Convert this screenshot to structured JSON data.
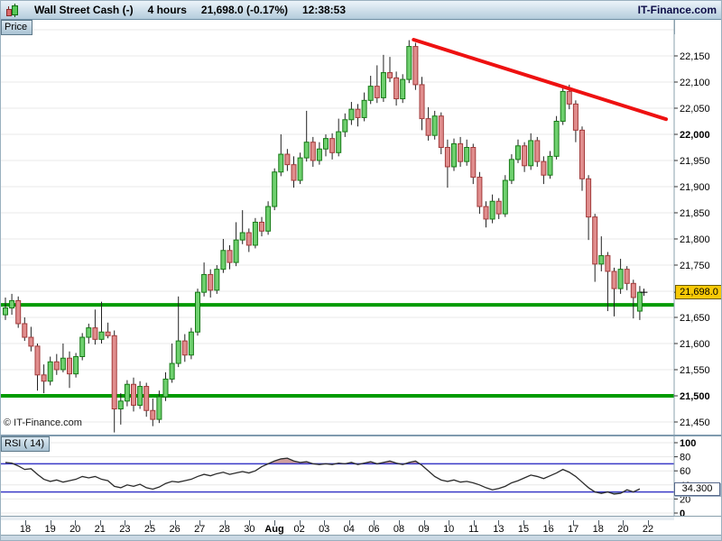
{
  "title_bar": {
    "instrument": "Wall Street Cash (-)",
    "timeframe": "4 hours",
    "quote": "21,698.0 (-0.17%)",
    "time": "12:38:53",
    "brand": "IT-Finance.com"
  },
  "price_panel": {
    "tab_label": "Price",
    "watermark": "© IT-Finance.com",
    "price_badge": "21,698.0"
  },
  "rsi_panel": {
    "tab_label": "RSI ( 14)",
    "value_badge": "34.300"
  },
  "chart_data": [
    {
      "type": "candlestick",
      "title": "Wall Street Cash (-)",
      "timeframe": "4 hours",
      "last_price": 21698.0,
      "change_pct": -0.17,
      "ylim": [
        21430,
        22210
      ],
      "price_axis": {
        "ticks": [
          22150,
          22100,
          22050,
          22000,
          21950,
          21900,
          21850,
          21800,
          21750,
          21650,
          21600,
          21550,
          21500,
          21450
        ],
        "bold": [
          22000,
          21500
        ],
        "grid_step": 50,
        "grid_min": 21450,
        "grid_max": 22200
      },
      "x_labels": [
        "18",
        "19",
        "20",
        "21",
        "23",
        "25",
        "26",
        "27",
        "28",
        "30",
        "Aug",
        "02",
        "03",
        "04",
        "06",
        "08",
        "09",
        "10",
        "11",
        "13",
        "15",
        "16",
        "17",
        "18",
        "20",
        "22"
      ],
      "bold_x_label": "Aug",
      "overlays": {
        "horizontal_lines": [
          {
            "price": 21674,
            "color": "#009b00",
            "width": 4
          },
          {
            "price": 21500,
            "color": "#009b00",
            "width": 4
          }
        ],
        "trendline": {
          "x1_frac": 0.613,
          "price1": 22181,
          "x2_frac": 0.988,
          "price2": 22029,
          "color": "#ee1111",
          "width": 4
        },
        "last_marker": {
          "x_frac": 0.955,
          "price": 21698
        }
      },
      "colors": {
        "up_fill": "#6ed06e",
        "up_stroke": "#167a16",
        "down_fill": "#e08d8d",
        "down_stroke": "#a23a3a",
        "wick": "#222222",
        "grid": "#e8e8e8",
        "axis": "#8aa0ad"
      },
      "candles": [
        [
          21655,
          21688,
          21645,
          21668
        ],
        [
          21668,
          21695,
          21655,
          21682
        ],
        [
          21682,
          21690,
          21630,
          21638
        ],
        [
          21638,
          21650,
          21605,
          21612
        ],
        [
          21612,
          21632,
          21585,
          21595
        ],
        [
          21595,
          21600,
          21510,
          21540
        ],
        [
          21540,
          21560,
          21505,
          21528
        ],
        [
          21528,
          21575,
          21520,
          21565
        ],
        [
          21565,
          21580,
          21540,
          21550
        ],
        [
          21550,
          21600,
          21545,
          21572
        ],
        [
          21572,
          21585,
          21515,
          21542
        ],
        [
          21542,
          21582,
          21535,
          21575
        ],
        [
          21575,
          21620,
          21568,
          21612
        ],
        [
          21612,
          21638,
          21600,
          21630
        ],
        [
          21630,
          21665,
          21598,
          21608
        ],
        [
          21608,
          21680,
          21600,
          21622
        ],
        [
          21622,
          21640,
          21610,
          21615
        ],
        [
          21615,
          21625,
          21430,
          21475
        ],
        [
          21475,
          21505,
          21445,
          21490
        ],
        [
          21490,
          21530,
          21480,
          21522
        ],
        [
          21522,
          21535,
          21470,
          21482
        ],
        [
          21482,
          21528,
          21475,
          21518
        ],
        [
          21518,
          21525,
          21460,
          21472
        ],
        [
          21472,
          21495,
          21442,
          21455
        ],
        [
          21455,
          21510,
          21448,
          21498
        ],
        [
          21498,
          21545,
          21490,
          21532
        ],
        [
          21532,
          21600,
          21525,
          21562
        ],
        [
          21562,
          21690,
          21555,
          21605
        ],
        [
          21605,
          21618,
          21565,
          21578
        ],
        [
          21578,
          21630,
          21570,
          21622
        ],
        [
          21622,
          21705,
          21615,
          21698
        ],
        [
          21698,
          21755,
          21690,
          21732
        ],
        [
          21732,
          21742,
          21688,
          21702
        ],
        [
          21702,
          21750,
          21695,
          21742
        ],
        [
          21742,
          21800,
          21735,
          21778
        ],
        [
          21778,
          21788,
          21742,
          21755
        ],
        [
          21755,
          21832,
          21748,
          21798
        ],
        [
          21798,
          21855,
          21790,
          21812
        ],
        [
          21812,
          21820,
          21775,
          21788
        ],
        [
          21788,
          21840,
          21782,
          21832
        ],
        [
          21832,
          21842,
          21805,
          21815
        ],
        [
          21815,
          21872,
          21808,
          21862
        ],
        [
          21862,
          21935,
          21855,
          21928
        ],
        [
          21928,
          22000,
          21920,
          21962
        ],
        [
          21962,
          21972,
          21930,
          21942
        ],
        [
          21942,
          21958,
          21898,
          21912
        ],
        [
          21912,
          21965,
          21905,
          21955
        ],
        [
          21955,
          22045,
          21948,
          21985
        ],
        [
          21985,
          21995,
          21938,
          21950
        ],
        [
          21950,
          21985,
          21942,
          21972
        ],
        [
          21972,
          22000,
          21958,
          21992
        ],
        [
          21992,
          22002,
          21952,
          21965
        ],
        [
          21965,
          22030,
          21958,
          22005
        ],
        [
          22005,
          22040,
          21995,
          22028
        ],
        [
          22028,
          22062,
          22018,
          22048
        ],
        [
          22048,
          22058,
          22015,
          22032
        ],
        [
          22032,
          22080,
          22025,
          22065
        ],
        [
          22065,
          22112,
          22058,
          22092
        ],
        [
          22092,
          22132,
          22060,
          22070
        ],
        [
          22070,
          22152,
          22062,
          22118
        ],
        [
          22118,
          22148,
          22100,
          22108
        ],
        [
          22108,
          22120,
          22055,
          22068
        ],
        [
          22068,
          22115,
          22060,
          22105
        ],
        [
          22105,
          22180,
          22098,
          22168
        ],
        [
          22168,
          22175,
          22085,
          22095
        ],
        [
          22095,
          22110,
          22008,
          22030
        ],
        [
          22030,
          22052,
          21988,
          21998
        ],
        [
          21998,
          22045,
          21990,
          22035
        ],
        [
          22035,
          22042,
          21962,
          21975
        ],
        [
          21975,
          21990,
          21898,
          21938
        ],
        [
          21938,
          21992,
          21930,
          21982
        ],
        [
          21982,
          21995,
          21938,
          21948
        ],
        [
          21948,
          21990,
          21940,
          21975
        ],
        [
          21975,
          21982,
          21905,
          21918
        ],
        [
          21918,
          21928,
          21848,
          21862
        ],
        [
          21862,
          21872,
          21822,
          21838
        ],
        [
          21838,
          21885,
          21830,
          21872
        ],
        [
          21872,
          21878,
          21838,
          21848
        ],
        [
          21848,
          21922,
          21842,
          21912
        ],
        [
          21912,
          21962,
          21905,
          21952
        ],
        [
          21952,
          21990,
          21945,
          21978
        ],
        [
          21978,
          21985,
          21928,
          21940
        ],
        [
          21940,
          22002,
          21932,
          21988
        ],
        [
          21988,
          21995,
          21938,
          21948
        ],
        [
          21948,
          21958,
          21905,
          21922
        ],
        [
          21922,
          21968,
          21915,
          21958
        ],
        [
          21958,
          22035,
          21952,
          22025
        ],
        [
          22025,
          22092,
          22018,
          22082
        ],
        [
          22082,
          22095,
          22048,
          22058
        ],
        [
          22058,
          22065,
          21985,
          22008
        ],
        [
          22008,
          22015,
          21892,
          21915
        ],
        [
          21915,
          21922,
          21798,
          21842
        ],
        [
          21842,
          21848,
          21718,
          21752
        ],
        [
          21752,
          21805,
          21738,
          21768
        ],
        [
          21768,
          21775,
          21662,
          21738
        ],
        [
          21738,
          21745,
          21652,
          21705
        ],
        [
          21705,
          21762,
          21695,
          21742
        ],
        [
          21742,
          21748,
          21702,
          21715
        ],
        [
          21715,
          21722,
          21648,
          21688
        ],
        [
          21662,
          21710,
          21645,
          21698
        ]
      ]
    },
    {
      "type": "line",
      "name": "RSI (14)",
      "ylim": [
        0,
        100
      ],
      "ticks": [
        100,
        80,
        60,
        40,
        20,
        0
      ],
      "bold_ticks": [
        100,
        0
      ],
      "overbought": 70,
      "oversold": 30,
      "last_value": 34.3,
      "colors": {
        "line": "#2b2b2b",
        "levels": "#3a3ac8",
        "fill_above": "#cf9f9f",
        "fill_below": "#9fc09f",
        "grid": "#e8e8e8",
        "axis": "#8aa0ad"
      },
      "values": [
        72,
        71,
        67,
        62,
        63,
        55,
        48,
        45,
        47,
        44,
        46,
        48,
        52,
        50,
        52,
        48,
        46,
        38,
        36,
        40,
        38,
        41,
        36,
        34,
        37,
        42,
        45,
        44,
        46,
        48,
        52,
        55,
        53,
        56,
        58,
        55,
        57,
        59,
        57,
        60,
        66,
        70,
        74,
        77,
        78,
        74,
        72,
        73,
        70,
        69,
        70,
        69,
        71,
        70,
        72,
        69,
        71,
        73,
        70,
        72,
        74,
        71,
        69,
        72,
        74,
        68,
        60,
        52,
        47,
        45,
        47,
        44,
        45,
        43,
        40,
        36,
        33,
        35,
        38,
        43,
        46,
        50,
        54,
        52,
        49,
        53,
        57,
        62,
        58,
        52,
        44,
        36,
        30,
        28,
        30,
        27,
        28,
        33,
        30,
        34.3
      ]
    }
  ]
}
